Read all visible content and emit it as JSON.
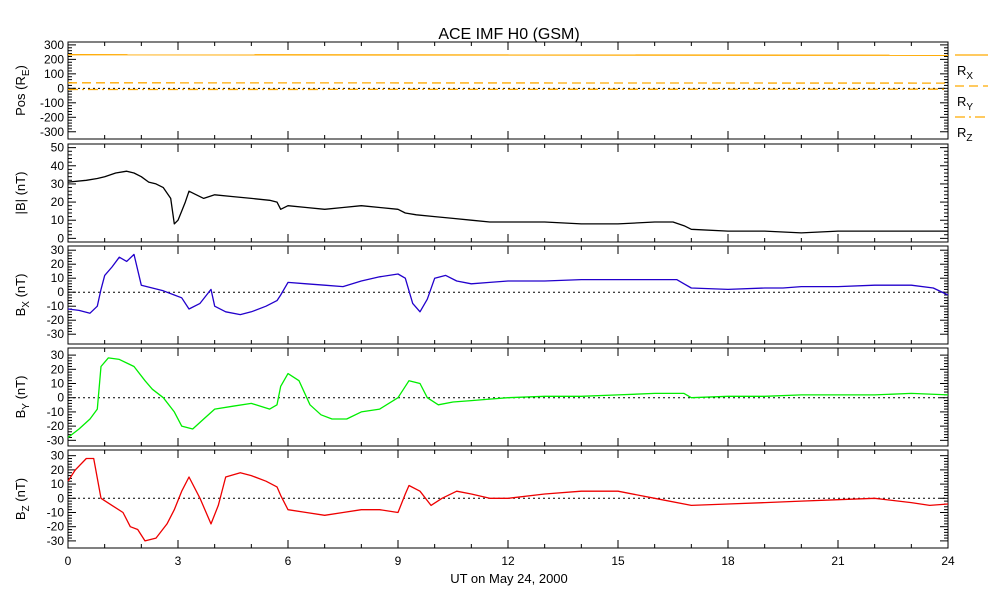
{
  "chart_data": {
    "type": "line",
    "title": "ACE IMF H0 (GSM)",
    "xlabel": "UT on May 24, 2000",
    "xlim": [
      0,
      24
    ],
    "xticks": [
      0,
      3,
      6,
      9,
      12,
      15,
      18,
      21,
      24
    ],
    "xtick_labels": [
      "0",
      "3",
      "6",
      "9",
      "12",
      "15",
      "18",
      "21",
      "24"
    ],
    "panels": [
      {
        "id": "pos",
        "ylabel": "Pos (R",
        "ylabel_sub": "E",
        "ylabel_end": ")",
        "ylim": [
          -350,
          320
        ],
        "yticks": [
          -300,
          -200,
          -100,
          0,
          100,
          200,
          300
        ],
        "zero_line": true,
        "series": [
          {
            "name": "R",
            "name_sub": "X",
            "color": "#ffaa00",
            "dash": "solid",
            "x": [
              0,
              24
            ],
            "y": [
              232,
              228
            ]
          },
          {
            "name": "R",
            "name_sub": "Y",
            "color": "#ffaa00",
            "dash": "dashed",
            "x": [
              0,
              24
            ],
            "y": [
              38,
              36
            ]
          },
          {
            "name": "R",
            "name_sub": "Z",
            "color": "#ffaa00",
            "dash": "dashdot",
            "x": [
              0,
              24
            ],
            "y": [
              -8,
              -6
            ]
          }
        ]
      },
      {
        "id": "btot",
        "ylabel": "|B| (nT)",
        "ylim": [
          -2,
          52
        ],
        "yticks": [
          0,
          10,
          20,
          30,
          40,
          50
        ],
        "zero_line": false,
        "series": [
          {
            "name": "|B|",
            "color": "#000000",
            "x": [
              0,
              0.5,
              0.8,
              1.0,
              1.3,
              1.6,
              1.8,
              2.0,
              2.2,
              2.4,
              2.6,
              2.8,
              2.9,
              3.0,
              3.1,
              3.2,
              3.3,
              3.5,
              3.7,
              4.0,
              4.5,
              5.0,
              5.5,
              5.7,
              5.8,
              6.0,
              6.5,
              7.0,
              7.5,
              8.0,
              8.5,
              9.0,
              9.2,
              9.5,
              10.0,
              10.5,
              11.0,
              11.5,
              12.0,
              13.0,
              14.0,
              15.0,
              16.0,
              16.5,
              16.8,
              17.0,
              18.0,
              19.0,
              20.0,
              21.0,
              22.0,
              23.0,
              24.0
            ],
            "y": [
              31,
              32,
              33,
              34,
              36,
              37,
              36,
              34,
              31,
              30,
              28,
              22,
              8,
              10,
              15,
              20,
              26,
              24,
              22,
              24,
              23,
              22,
              21,
              20,
              16,
              18,
              17,
              16,
              17,
              18,
              17,
              16,
              14,
              13,
              12,
              11,
              10,
              9,
              9,
              9,
              8,
              8,
              9,
              9,
              7,
              5,
              4,
              4,
              3,
              4,
              4,
              4,
              4
            ]
          }
        ]
      },
      {
        "id": "bx",
        "ylabel": "B",
        "ylabel_sub": "X",
        "ylabel_end": " (nT)",
        "ylim": [
          -37,
          33
        ],
        "yticks": [
          -30,
          -20,
          -10,
          0,
          10,
          20,
          30
        ],
        "zero_line": true,
        "series": [
          {
            "name": "Bx",
            "color": "#2200cc",
            "x": [
              0,
              0.3,
              0.6,
              0.8,
              0.9,
              1.0,
              1.2,
              1.4,
              1.6,
              1.8,
              2.0,
              2.3,
              2.6,
              2.9,
              3.1,
              3.3,
              3.6,
              3.9,
              4.0,
              4.3,
              4.7,
              5.0,
              5.4,
              5.7,
              5.8,
              6.0,
              6.5,
              7.0,
              7.5,
              8.0,
              8.5,
              9.0,
              9.2,
              9.4,
              9.6,
              9.8,
              10.0,
              10.3,
              10.6,
              11.0,
              11.5,
              12.0,
              13.0,
              14.0,
              15.0,
              16.0,
              16.6,
              16.8,
              17.0,
              18.0,
              19.0,
              19.5,
              20.0,
              21.0,
              22.0,
              23.0,
              23.6,
              24.0
            ],
            "y": [
              -12,
              -13,
              -15,
              -10,
              2,
              12,
              18,
              25,
              22,
              27,
              5,
              3,
              1,
              -2,
              -4,
              -12,
              -8,
              2,
              -10,
              -14,
              -16,
              -14,
              -10,
              -6,
              -2,
              7,
              6,
              5,
              4,
              8,
              11,
              13,
              10,
              -8,
              -14,
              -5,
              10,
              12,
              8,
              6,
              7,
              8,
              8,
              9,
              9,
              9,
              9,
              6,
              3,
              2,
              3,
              3,
              4,
              4,
              5,
              5,
              3,
              -2
            ]
          }
        ]
      },
      {
        "id": "by",
        "ylabel": "B",
        "ylabel_sub": "Y",
        "ylabel_end": " (nT)",
        "ylim": [
          -34,
          35
        ],
        "yticks": [
          -30,
          -20,
          -10,
          0,
          10,
          20,
          30
        ],
        "zero_line": true,
        "series": [
          {
            "name": "By",
            "color": "#00ee00",
            "x": [
              0,
              0.3,
              0.6,
              0.8,
              0.9,
              1.1,
              1.4,
              1.8,
              2.1,
              2.3,
              2.6,
              2.9,
              3.1,
              3.4,
              3.7,
              4.0,
              4.5,
              5.0,
              5.5,
              5.7,
              5.8,
              6.0,
              6.3,
              6.6,
              6.9,
              7.2,
              7.6,
              8.0,
              8.5,
              9.0,
              9.3,
              9.6,
              9.8,
              10.1,
              10.5,
              11.0,
              11.5,
              12.0,
              13.0,
              14.0,
              15.0,
              16.0,
              16.8,
              17.0,
              18.0,
              19.0,
              20.0,
              21.0,
              22.0,
              23.0,
              24.0
            ],
            "y": [
              -28,
              -22,
              -15,
              -8,
              22,
              28,
              27,
              22,
              12,
              6,
              0,
              -10,
              -20,
              -22,
              -15,
              -8,
              -6,
              -4,
              -8,
              -5,
              8,
              17,
              12,
              -5,
              -12,
              -15,
              -15,
              -10,
              -8,
              0,
              12,
              10,
              0,
              -5,
              -3,
              -2,
              -1,
              0,
              1,
              1,
              2,
              3,
              3,
              0,
              1,
              1,
              2,
              2,
              2,
              3,
              2
            ]
          }
        ]
      },
      {
        "id": "bz",
        "ylabel": "B",
        "ylabel_sub": "Z",
        "ylabel_end": " (nT)",
        "ylim": [
          -35,
          34
        ],
        "yticks": [
          -30,
          -20,
          -10,
          0,
          10,
          20,
          30
        ],
        "zero_line": true,
        "series": [
          {
            "name": "Bz",
            "color": "#ee0000",
            "x": [
              0,
              0.2,
              0.5,
              0.7,
              0.9,
              1.2,
              1.5,
              1.7,
              1.9,
              2.1,
              2.4,
              2.7,
              2.9,
              3.1,
              3.3,
              3.6,
              3.9,
              4.1,
              4.3,
              4.7,
              5.0,
              5.4,
              5.7,
              5.8,
              6.0,
              6.5,
              7.0,
              7.5,
              8.0,
              8.5,
              9.0,
              9.2,
              9.3,
              9.6,
              9.9,
              10.2,
              10.6,
              11.0,
              11.5,
              12.0,
              13.0,
              14.0,
              15.0,
              16.0,
              17.0,
              18.0,
              19.0,
              20.0,
              21.0,
              22.0,
              23.0,
              23.5,
              24.0
            ],
            "y": [
              12,
              20,
              28,
              28,
              0,
              -5,
              -10,
              -20,
              -22,
              -30,
              -28,
              -18,
              -8,
              5,
              15,
              0,
              -18,
              -5,
              15,
              18,
              16,
              12,
              8,
              2,
              -8,
              -10,
              -12,
              -10,
              -8,
              -8,
              -10,
              3,
              9,
              5,
              -5,
              0,
              5,
              3,
              0,
              0,
              3,
              5,
              5,
              0,
              -5,
              -4,
              -3,
              -2,
              -1,
              0,
              -3,
              -5,
              -4
            ]
          }
        ]
      }
    ]
  }
}
